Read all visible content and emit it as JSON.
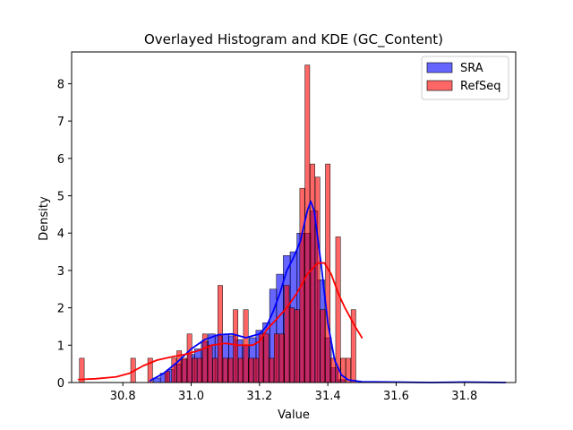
{
  "chart_data": {
    "type": "bar",
    "title": "Overlayed Histogram and KDE (GC_Content)",
    "xlabel": "Value",
    "ylabel": "Density",
    "xlim": [
      30.65,
      31.95
    ],
    "ylim": [
      0,
      8.85
    ],
    "xticks": [
      30.8,
      31.0,
      31.2,
      31.4,
      31.6,
      31.8
    ],
    "xtick_labels": [
      "30.8",
      "31.0",
      "31.2",
      "31.4",
      "31.6",
      "31.8"
    ],
    "yticks": [
      0,
      1,
      2,
      3,
      4,
      5,
      6,
      7,
      8
    ],
    "ytick_labels": [
      "0",
      "1",
      "2",
      "3",
      "4",
      "5",
      "6",
      "7",
      "8"
    ],
    "grid": false,
    "legend_position": "top-right",
    "series": [
      {
        "name": "SRA",
        "color": "#0000ff",
        "bin_width": 0.0209,
        "bins": [
          [
            30.9,
            0.12
          ],
          [
            30.92,
            0.25
          ],
          [
            30.94,
            0.35
          ],
          [
            30.96,
            0.5
          ],
          [
            30.98,
            0.62
          ],
          [
            31.0,
            0.75
          ],
          [
            31.02,
            0.9
          ],
          [
            31.04,
            1.1
          ],
          [
            31.06,
            1.3
          ],
          [
            31.08,
            1.25
          ],
          [
            31.1,
            1.3
          ],
          [
            31.12,
            1.25
          ],
          [
            31.14,
            1.15
          ],
          [
            31.16,
            1.0
          ],
          [
            31.18,
            1.2
          ],
          [
            31.2,
            1.4
          ],
          [
            31.22,
            1.6
          ],
          [
            31.24,
            2.5
          ],
          [
            31.26,
            2.9
          ],
          [
            31.28,
            3.4
          ],
          [
            31.3,
            3.5
          ],
          [
            31.32,
            4.0
          ],
          [
            31.34,
            4.0
          ],
          [
            31.36,
            4.6
          ],
          [
            31.38,
            2.75
          ],
          [
            31.4,
            1.2
          ],
          [
            31.42,
            0.4
          ],
          [
            31.44,
            0.08
          ]
        ],
        "kde_x": [
          30.88,
          30.92,
          30.96,
          31.0,
          31.04,
          31.08,
          31.12,
          31.16,
          31.2,
          31.22,
          31.24,
          31.26,
          31.28,
          31.3,
          31.32,
          31.34,
          31.35,
          31.36,
          31.38,
          31.4,
          31.42,
          31.44,
          31.46,
          31.5,
          31.6,
          31.7,
          31.8,
          31.92
        ],
        "kde_y": [
          0.05,
          0.25,
          0.55,
          0.9,
          1.15,
          1.28,
          1.3,
          1.2,
          1.3,
          1.5,
          1.9,
          2.4,
          3.0,
          3.35,
          3.8,
          4.6,
          4.85,
          4.6,
          3.2,
          1.6,
          0.6,
          0.2,
          0.07,
          0.02,
          0.01,
          0.0,
          0.01,
          0.0
        ]
      },
      {
        "name": "RefSeq",
        "color": "#ff0000",
        "bin_width": 0.0139,
        "bins": [
          [
            30.68,
            0.65
          ],
          [
            30.83,
            0.65
          ],
          [
            30.88,
            0.65
          ],
          [
            30.93,
            0.3
          ],
          [
            30.95,
            0.65
          ],
          [
            30.965,
            0.85
          ],
          [
            30.98,
            0.65
          ],
          [
            30.995,
            1.3
          ],
          [
            31.01,
            0.65
          ],
          [
            31.025,
            0.65
          ],
          [
            31.04,
            1.3
          ],
          [
            31.055,
            1.0
          ],
          [
            31.07,
            0.65
          ],
          [
            31.085,
            2.6
          ],
          [
            31.1,
            0.65
          ],
          [
            31.115,
            0.65
          ],
          [
            31.13,
            1.95
          ],
          [
            31.145,
            0.65
          ],
          [
            31.16,
            1.95
          ],
          [
            31.175,
            0.65
          ],
          [
            31.19,
            0.65
          ],
          [
            31.205,
            1.3
          ],
          [
            31.22,
            1.3
          ],
          [
            31.235,
            0.65
          ],
          [
            31.25,
            1.3
          ],
          [
            31.265,
            1.3
          ],
          [
            31.28,
            2.6
          ],
          [
            31.295,
            2.0
          ],
          [
            31.31,
            1.95
          ],
          [
            31.325,
            5.2
          ],
          [
            31.34,
            8.5
          ],
          [
            31.355,
            5.85
          ],
          [
            31.37,
            5.5
          ],
          [
            31.385,
            1.95
          ],
          [
            31.4,
            5.85
          ],
          [
            31.415,
            0.65
          ],
          [
            31.43,
            3.9
          ],
          [
            31.445,
            0.65
          ],
          [
            31.46,
            0.65
          ],
          [
            31.475,
            1.95
          ]
        ],
        "kde_x": [
          30.67,
          30.72,
          30.78,
          30.82,
          30.86,
          30.9,
          30.94,
          30.98,
          31.02,
          31.06,
          31.1,
          31.14,
          31.18,
          31.2,
          31.22,
          31.25,
          31.28,
          31.31,
          31.34,
          31.37,
          31.39,
          31.41,
          31.43,
          31.45,
          31.48,
          31.5
        ],
        "kde_y": [
          0.08,
          0.1,
          0.15,
          0.25,
          0.45,
          0.6,
          0.68,
          0.75,
          0.85,
          1.0,
          1.05,
          1.0,
          1.0,
          1.1,
          1.4,
          1.7,
          2.0,
          2.4,
          2.9,
          3.2,
          3.2,
          2.9,
          2.4,
          2.0,
          1.5,
          1.2
        ]
      }
    ]
  }
}
